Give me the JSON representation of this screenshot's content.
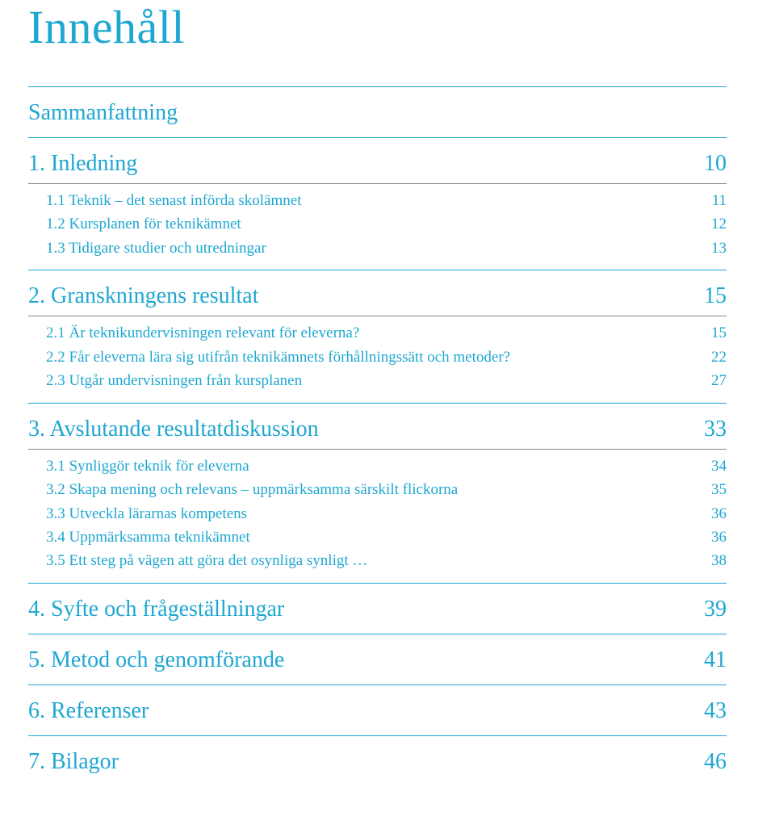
{
  "colors": {
    "accent": "#1ea7d1",
    "text": "#333333",
    "rule": "#1ea7d1",
    "rule_light": "#888888"
  },
  "title": "Innehåll",
  "sections": [
    {
      "heading": "Sammanfattning",
      "page": "",
      "items": []
    },
    {
      "heading": "1. Inledning",
      "page": "10",
      "items": [
        {
          "label": "1.1 Teknik – det senast införda skolämnet",
          "page": "11"
        },
        {
          "label": "1.2 Kursplanen för teknikämnet",
          "page": "12"
        },
        {
          "label": "1.3 Tidigare studier och utredningar",
          "page": "13"
        }
      ]
    },
    {
      "heading": "2. Granskningens resultat",
      "page": "15",
      "items": [
        {
          "label": "2.1 Är teknikundervisningen relevant för eleverna?",
          "page": "15"
        },
        {
          "label": "2.2 Får eleverna lära sig utifrån teknikämnets förhållningssätt och metoder?",
          "page": "22"
        },
        {
          "label": "2.3 Utgår undervisningen från kursplanen",
          "page": "27"
        }
      ]
    },
    {
      "heading": "3. Avslutande resultatdiskussion",
      "page": "33",
      "items": [
        {
          "label": "3.1 Synliggör teknik för eleverna",
          "page": "34"
        },
        {
          "label": "3.2 Skapa mening och relevans – uppmärksamma särskilt flickorna",
          "page": "35"
        },
        {
          "label": "3.3 Utveckla lärarnas kompetens",
          "page": "36"
        },
        {
          "label": "3.4 Uppmärksamma teknikämnet",
          "page": "36"
        },
        {
          "label": "3.5 Ett steg på vägen att göra det osynliga synligt …",
          "page": "38"
        }
      ]
    },
    {
      "heading": "4. Syfte och frågeställningar",
      "page": "39",
      "items": []
    },
    {
      "heading": "5. Metod och genomförande",
      "page": "41",
      "items": []
    },
    {
      "heading": "6. Referenser",
      "page": "43",
      "items": []
    },
    {
      "heading": "7. Bilagor",
      "page": "46",
      "items": []
    }
  ]
}
